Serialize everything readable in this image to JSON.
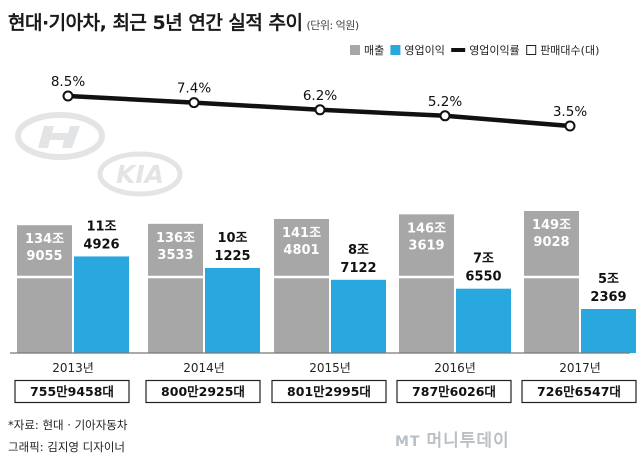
{
  "header": {
    "title": "현대·기아차, 최근 5년 연간 실적 추이",
    "unit": "(단위: 억원)"
  },
  "chart_data": {
    "type": "bar",
    "title": "현대·기아차, 최근 5년 연간 실적 추이",
    "unit": "(단위: 억원)",
    "categories": [
      "2013년",
      "2014년",
      "2015년",
      "2016년",
      "2017년"
    ],
    "series": [
      {
        "name": "매출",
        "type": "bar",
        "color": "#a7a7a7",
        "values": [
          1349055,
          1363533,
          1414801,
          1463619,
          1499028
        ],
        "labels": [
          [
            "134조",
            "9055"
          ],
          [
            "136조",
            "3533"
          ],
          [
            "141조",
            "4801"
          ],
          [
            "146조",
            "3619"
          ],
          [
            "149조",
            "9028"
          ]
        ]
      },
      {
        "name": "영업이익",
        "type": "bar",
        "color": "#29a8e0",
        "values": [
          114926,
          101225,
          87122,
          76550,
          52369
        ],
        "labels": [
          [
            "11조",
            "4926"
          ],
          [
            "10조",
            "1225"
          ],
          [
            "8조",
            "7122"
          ],
          [
            "7조",
            "6550"
          ],
          [
            "5조",
            "2369"
          ]
        ]
      },
      {
        "name": "영업이익률",
        "type": "line",
        "color": "#111111",
        "values": [
          8.5,
          7.4,
          6.2,
          5.2,
          3.5
        ],
        "labels": [
          "8.5%",
          "7.4%",
          "6.2%",
          "5.2%",
          "3.5%"
        ]
      },
      {
        "name": "판매대수(대)",
        "type": "table",
        "values": [
          7559458,
          8002925,
          8012995,
          7876026,
          7266547
        ],
        "labels": [
          "755만9458대",
          "800만2925대",
          "801만2995대",
          "787만6026대",
          "726만6547대"
        ]
      }
    ],
    "legend": {
      "position": "top-right"
    }
  },
  "footer": {
    "source": "*자료: 현대 · 기아자동차",
    "credit": "그래픽: 김지영 디자이너",
    "watermark": "MT",
    "watermark_site": "머니투데이"
  }
}
